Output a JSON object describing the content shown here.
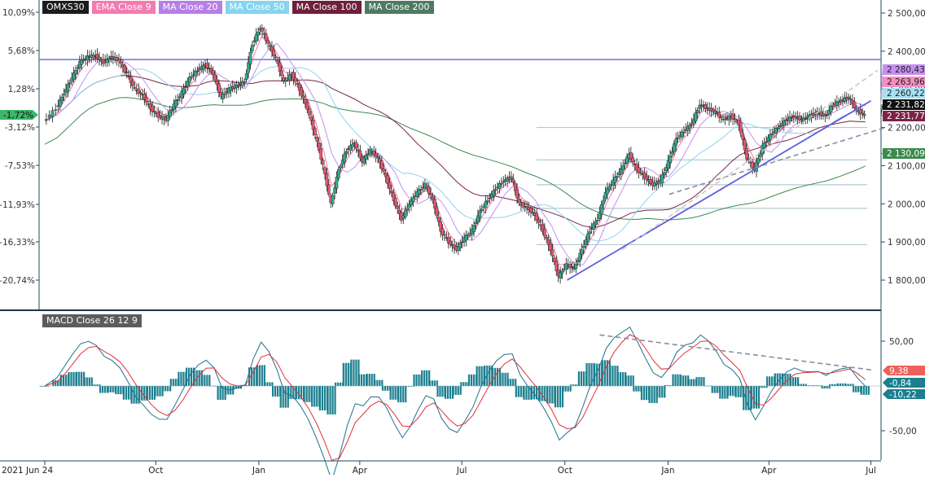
{
  "legend": [
    {
      "label": "OMXS30",
      "color": "#1c1c1c"
    },
    {
      "label": "EMA Close 9",
      "color": "#f27bb0"
    },
    {
      "label": "MA Close 20",
      "color": "#b57fe6"
    },
    {
      "label": "MA Close 50",
      "color": "#86d4ee"
    },
    {
      "label": "MA Close 100",
      "color": "#6e1f3c"
    },
    {
      "label": "MA Close 200",
      "color": "#4f7a5f"
    }
  ],
  "macd_label": "MACD Close 26 12 9",
  "chart_data": [
    {
      "type": "candlestick",
      "title": "OMXS30",
      "y_right_ticks": [
        "2 500,00",
        "2 400,00",
        "2 300,00",
        "2 200,00",
        "2 100,00",
        "2 000,00",
        "1 900,00",
        "1 800,00"
      ],
      "y_left_ticks": [
        "10,09%",
        "5,68%",
        "1,28%",
        "-3,12%",
        "-7,53%",
        "-11,93%",
        "-16,33%",
        "-20,74%"
      ],
      "x_ticks": [
        "2021 Jun 24",
        "Oct",
        "Jan",
        "Apr",
        "Jul",
        "Oct",
        "Jan",
        "Apr",
        "Jul"
      ],
      "ylim": [
        1775,
        2510
      ],
      "close_series": [
        [
          "2021-06-24",
          2216
        ],
        [
          "2021-07-05",
          2250
        ],
        [
          "2021-07-12",
          2290
        ],
        [
          "2021-07-19",
          2330
        ],
        [
          "2021-07-26",
          2370
        ],
        [
          "2021-08-02",
          2385
        ],
        [
          "2021-08-09",
          2388
        ],
        [
          "2021-08-16",
          2370
        ],
        [
          "2021-08-23",
          2385
        ],
        [
          "2021-08-30",
          2375
        ],
        [
          "2021-09-06",
          2340
        ],
        [
          "2021-09-13",
          2300
        ],
        [
          "2021-09-20",
          2285
        ],
        [
          "2021-09-27",
          2250
        ],
        [
          "2021-10-04",
          2230
        ],
        [
          "2021-10-11",
          2220
        ],
        [
          "2021-10-18",
          2260
        ],
        [
          "2021-10-25",
          2290
        ],
        [
          "2021-11-01",
          2330
        ],
        [
          "2021-11-08",
          2350
        ],
        [
          "2021-11-15",
          2365
        ],
        [
          "2021-11-22",
          2340
        ],
        [
          "2021-11-29",
          2280
        ],
        [
          "2021-12-06",
          2300
        ],
        [
          "2021-12-13",
          2310
        ],
        [
          "2021-12-20",
          2320
        ],
        [
          "2021-12-27",
          2420
        ],
        [
          "2022-01-03",
          2462
        ],
        [
          "2022-01-10",
          2420
        ],
        [
          "2022-01-17",
          2380
        ],
        [
          "2022-01-24",
          2320
        ],
        [
          "2022-01-31",
          2340
        ],
        [
          "2022-02-07",
          2300
        ],
        [
          "2022-02-14",
          2250
        ],
        [
          "2022-02-21",
          2180
        ],
        [
          "2022-02-28",
          2100
        ],
        [
          "2022-03-07",
          2000
        ],
        [
          "2022-03-14",
          2090
        ],
        [
          "2022-03-21",
          2140
        ],
        [
          "2022-03-28",
          2160
        ],
        [
          "2022-04-04",
          2110
        ],
        [
          "2022-04-11",
          2140
        ],
        [
          "2022-04-18",
          2120
        ],
        [
          "2022-04-25",
          2070
        ],
        [
          "2022-05-02",
          2010
        ],
        [
          "2022-05-09",
          1960
        ],
        [
          "2022-05-16",
          2000
        ],
        [
          "2022-05-23",
          2030
        ],
        [
          "2022-05-30",
          2050
        ],
        [
          "2022-06-06",
          2010
        ],
        [
          "2022-06-13",
          1930
        ],
        [
          "2022-06-20",
          1900
        ],
        [
          "2022-06-27",
          1880
        ],
        [
          "2022-07-04",
          1910
        ],
        [
          "2022-07-11",
          1930
        ],
        [
          "2022-07-18",
          1980
        ],
        [
          "2022-07-25",
          2010
        ],
        [
          "2022-08-01",
          2040
        ],
        [
          "2022-08-08",
          2060
        ],
        [
          "2022-08-15",
          2070
        ],
        [
          "2022-08-22",
          2000
        ],
        [
          "2022-08-29",
          1990
        ],
        [
          "2022-09-05",
          1970
        ],
        [
          "2022-09-12",
          1930
        ],
        [
          "2022-09-19",
          1880
        ],
        [
          "2022-09-26",
          1810
        ],
        [
          "2022-10-03",
          1840
        ],
        [
          "2022-10-10",
          1830
        ],
        [
          "2022-10-17",
          1880
        ],
        [
          "2022-10-24",
          1930
        ],
        [
          "2022-10-31",
          1960
        ],
        [
          "2022-11-07",
          2030
        ],
        [
          "2022-11-14",
          2060
        ],
        [
          "2022-11-21",
          2090
        ],
        [
          "2022-11-28",
          2130
        ],
        [
          "2022-12-05",
          2090
        ],
        [
          "2022-12-12",
          2070
        ],
        [
          "2022-12-19",
          2050
        ],
        [
          "2022-12-26",
          2060
        ],
        [
          "2023-01-02",
          2110
        ],
        [
          "2023-01-09",
          2170
        ],
        [
          "2023-01-16",
          2190
        ],
        [
          "2023-01-23",
          2210
        ],
        [
          "2023-01-30",
          2260
        ],
        [
          "2023-02-06",
          2250
        ],
        [
          "2023-02-13",
          2240
        ],
        [
          "2023-02-20",
          2220
        ],
        [
          "2023-02-27",
          2230
        ],
        [
          "2023-03-06",
          2210
        ],
        [
          "2023-03-13",
          2120
        ],
        [
          "2023-03-20",
          2090
        ],
        [
          "2023-03-27",
          2150
        ],
        [
          "2023-04-03",
          2180
        ],
        [
          "2023-04-10",
          2200
        ],
        [
          "2023-04-17",
          2220
        ],
        [
          "2023-04-24",
          2230
        ],
        [
          "2023-05-01",
          2220
        ],
        [
          "2023-05-08",
          2230
        ],
        [
          "2023-05-15",
          2240
        ],
        [
          "2023-05-22",
          2230
        ],
        [
          "2023-05-29",
          2260
        ],
        [
          "2023-06-05",
          2270
        ],
        [
          "2023-06-12",
          2280
        ],
        [
          "2023-06-19",
          2245
        ],
        [
          "2023-06-26",
          2232
        ]
      ],
      "indicator_labels": [
        {
          "label": "2 280,43",
          "color": "#c58ff0"
        },
        {
          "label": "2 263,96",
          "color": "#f58ec0"
        },
        {
          "label": "2 260,22",
          "color": "#a5e0f5"
        },
        {
          "label": "2 231,82",
          "color": "#111111"
        },
        {
          "label": "2 231,77",
          "color": "#7a2445"
        },
        {
          "label": "2 130,09",
          "color": "#3c8a4e"
        }
      ],
      "current_pct_label": "-1,72%",
      "horizontal_line": 2378,
      "fib_levels": [
        2200,
        2115,
        2050,
        1988,
        1893
      ],
      "trendlines": [
        {
          "from": [
            "2022-10-03",
            1800
          ],
          "to": [
            "2023-07-01",
            2270
          ],
          "style": "solid"
        },
        {
          "from": [
            "2023-01-02",
            2025
          ],
          "to": [
            "2023-07-14",
            2200
          ],
          "style": "dashed"
        },
        {
          "from": [
            "2022-11-21",
            1880
          ],
          "to": [
            "2023-07-07",
            2350
          ],
          "style": "dashed-light"
        }
      ]
    },
    {
      "type": "macd",
      "title": "MACD Close 26 12 9",
      "y_ticks": [
        "50,00",
        "-50,00"
      ],
      "ylim": [
        -75,
        70
      ],
      "value_labels": [
        {
          "label": "9,38",
          "color": "#f0605a"
        },
        {
          "label": "-0,84",
          "color": "#1b7f8f"
        },
        {
          "label": "-10,22",
          "color": "#1b7f8f"
        }
      ],
      "trendline": {
        "from": [
          "2022-11-01",
          57
        ],
        "to": [
          "2023-07-01",
          18
        ]
      }
    }
  ]
}
